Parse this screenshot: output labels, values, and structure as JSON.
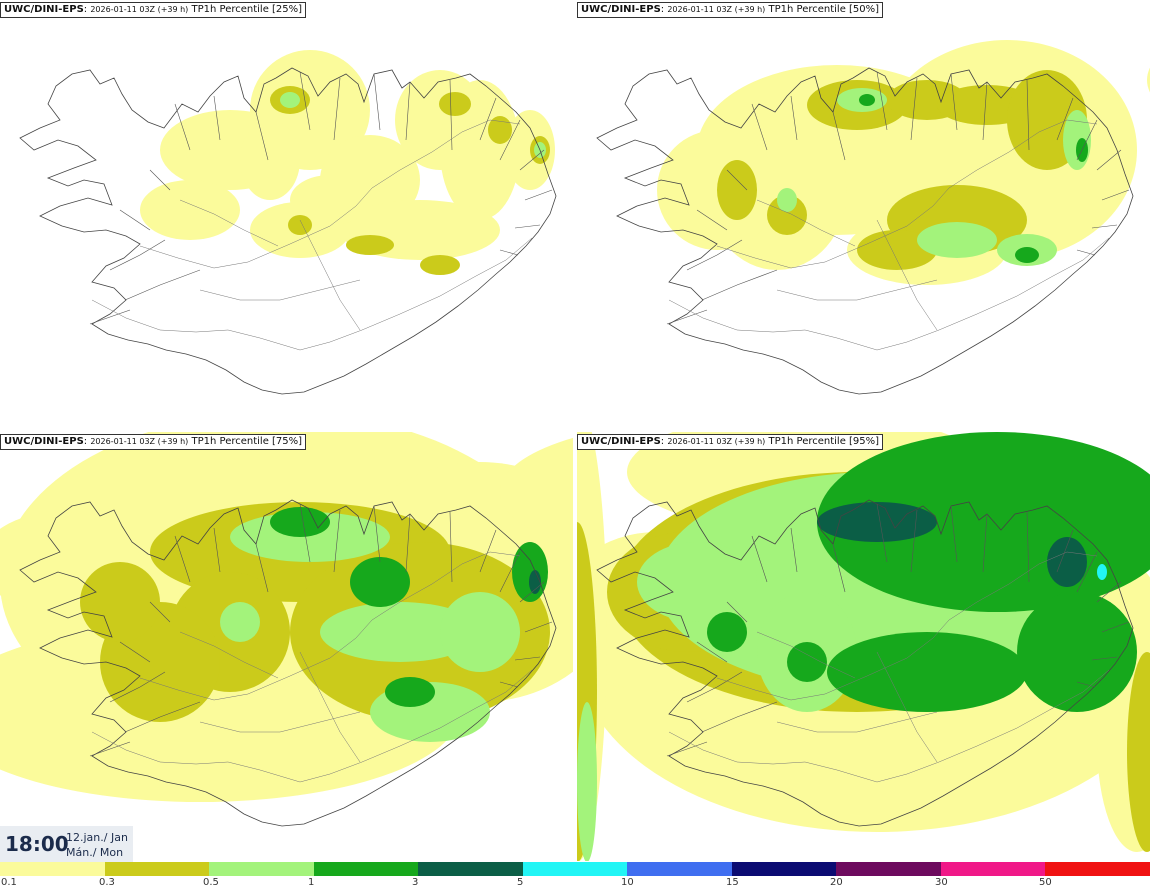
{
  "panels": [
    {
      "model": "UWC/DINI-EPS",
      "run": "2026-01-11 03Z (+39 h)",
      "field": "TP1h Percentile [25%]"
    },
    {
      "model": "UWC/DINI-EPS",
      "run": "2026-01-11 03Z (+39 h)",
      "field": "TP1h Percentile [50%]"
    },
    {
      "model": "UWC/DINI-EPS",
      "run": "2026-01-11 03Z (+39 h)",
      "field": "TP1h Percentile [75%]"
    },
    {
      "model": "UWC/DINI-EPS",
      "run": "2026-01-11 03Z (+39 h)",
      "field": "TP1h Percentile [95%]"
    }
  ],
  "valid_time": {
    "time": "18:00",
    "date_line1": "12.jan./ Jan",
    "date_line2": "Mán./ Mon"
  },
  "legend": {
    "colors": [
      "#fbfb9b",
      "#cbcb1b",
      "#a3f37b",
      "#16a81c",
      "#0b5e46",
      "#22f5f5",
      "#3f6ef0",
      "#0b0b72",
      "#6d0a5e",
      "#f01888",
      "#f01212"
    ],
    "ticks": [
      "0.1",
      "0.3",
      "0.5",
      "1",
      "3",
      "5",
      "10",
      "15",
      "20",
      "30",
      "50"
    ]
  }
}
